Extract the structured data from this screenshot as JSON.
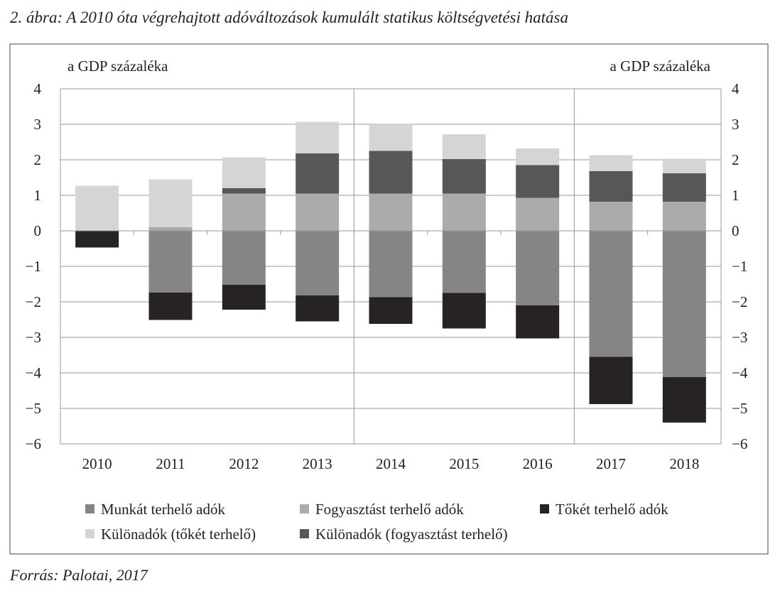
{
  "title": "2. ábra: A 2010 óta végrehajtott adóváltozások kumulált statikus költségvetési hatása",
  "source": "Forrás: Palotai, 2017",
  "chart_data": {
    "type": "bar",
    "stacked": true,
    "title": "2. ábra: A 2010 óta végrehajtott adóváltozások kumulált statikus költségvetési hatása",
    "ylabel_left": "a GDP százaléka",
    "ylabel_right": "a GDP százaléka",
    "ylim": [
      -6,
      4
    ],
    "yticks": [
      4,
      3,
      2,
      1,
      0,
      -1,
      -2,
      -3,
      -4,
      -5,
      -6
    ],
    "ytick_labels": [
      "4",
      "3",
      "2",
      "1",
      "0",
      "−1",
      "−2",
      "−3",
      "−4",
      "−5",
      "−6"
    ],
    "grid": true,
    "legend_placement": "bottom",
    "categories": [
      "2010",
      "2011",
      "2012",
      "2013",
      "2014",
      "2015",
      "2016",
      "2017",
      "2018"
    ],
    "series": [
      {
        "name": "Munkát terhelő adók",
        "color": "#858585",
        "values": [
          0,
          -1.74,
          -1.52,
          -1.82,
          -1.87,
          -1.75,
          -2.1,
          -3.55,
          -4.12
        ]
      },
      {
        "name": "Fogyasztást terhelő adók",
        "color": "#ababab",
        "values": [
          0,
          0.1,
          1.05,
          1.05,
          1.05,
          1.05,
          0.93,
          0.82,
          0.82
        ]
      },
      {
        "name": "Tőkét terhelő adók",
        "color": "#272324",
        "values": [
          -0.47,
          -0.77,
          -0.7,
          -0.73,
          -0.75,
          -1.0,
          -0.93,
          -1.33,
          -1.28
        ]
      },
      {
        "name": "Különadók (tőkét terhelő)",
        "color": "#d5d5d5",
        "values": [
          1.27,
          1.35,
          0.87,
          0.89,
          0.75,
          0.7,
          0.47,
          0.45,
          0.41
        ]
      },
      {
        "name": "Különadók (fogyasztást terhelő)",
        "color": "#575757",
        "values": [
          0,
          0,
          0.15,
          1.13,
          1.2,
          0.97,
          0.92,
          0.86,
          0.8
        ]
      }
    ],
    "stack_order_positive": [
      1,
      4,
      3
    ],
    "stack_order_negative": [
      0,
      2
    ],
    "vertical_separators_after": [
      "2013",
      "2016"
    ]
  }
}
